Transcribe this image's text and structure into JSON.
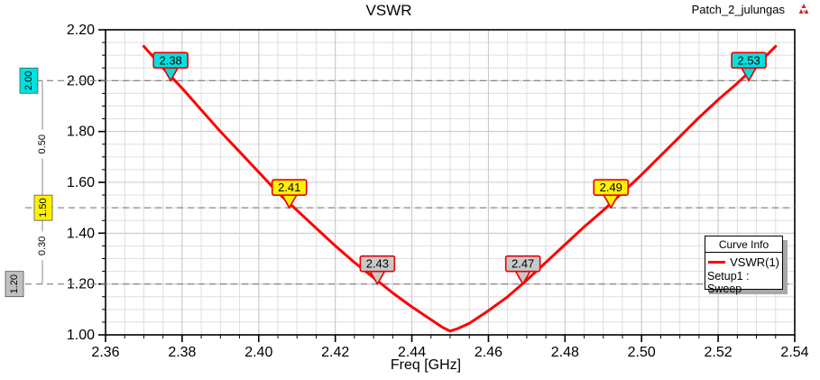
{
  "header": {
    "title": "VSWR",
    "project": "Patch_2_julungas",
    "logo_icon": "ansoft-logo"
  },
  "chart_data": {
    "type": "line",
    "title": "VSWR",
    "xlabel": "Freq [GHz]",
    "ylabel": "",
    "xlim": [
      2.36,
      2.54
    ],
    "ylim": [
      1.0,
      2.2
    ],
    "grid": true,
    "x_minor_step": 0.005,
    "y_minor_step": 0.05,
    "x_ticks": [
      {
        "label": "2.36",
        "value": 2.36
      },
      {
        "label": "2.38",
        "value": 2.38
      },
      {
        "label": "2.40",
        "value": 2.4
      },
      {
        "label": "2.42",
        "value": 2.42
      },
      {
        "label": "2.44",
        "value": 2.44
      },
      {
        "label": "2.46",
        "value": 2.46
      },
      {
        "label": "2.48",
        "value": 2.48
      },
      {
        "label": "2.50",
        "value": 2.5
      },
      {
        "label": "2.52",
        "value": 2.52
      },
      {
        "label": "2.54",
        "value": 2.54
      }
    ],
    "y_ticks": [
      {
        "label": "2.20",
        "value": 2.2
      },
      {
        "label": "2.00",
        "value": 2.0
      },
      {
        "label": "1.80",
        "value": 1.8
      },
      {
        "label": "1.60",
        "value": 1.6
      },
      {
        "label": "1.40",
        "value": 1.4
      },
      {
        "label": "1.20",
        "value": 1.2
      },
      {
        "label": "1.00",
        "value": 1.0
      }
    ],
    "series": [
      {
        "name": "VSWR(1)",
        "color": "#ff0000",
        "points": [
          [
            2.37,
            2.135
          ],
          [
            2.375,
            2.05
          ],
          [
            2.38,
            1.97
          ],
          [
            2.385,
            1.885
          ],
          [
            2.39,
            1.8
          ],
          [
            2.395,
            1.72
          ],
          [
            2.4,
            1.64
          ],
          [
            2.405,
            1.56
          ],
          [
            2.41,
            1.49
          ],
          [
            2.415,
            1.42
          ],
          [
            2.42,
            1.35
          ],
          [
            2.425,
            1.285
          ],
          [
            2.43,
            1.225
          ],
          [
            2.435,
            1.165
          ],
          [
            2.44,
            1.11
          ],
          [
            2.445,
            1.06
          ],
          [
            2.448,
            1.03
          ],
          [
            2.45,
            1.015
          ],
          [
            2.452,
            1.025
          ],
          [
            2.455,
            1.045
          ],
          [
            2.46,
            1.095
          ],
          [
            2.465,
            1.15
          ],
          [
            2.47,
            1.215
          ],
          [
            2.475,
            1.285
          ],
          [
            2.48,
            1.355
          ],
          [
            2.485,
            1.425
          ],
          [
            2.49,
            1.49
          ],
          [
            2.495,
            1.56
          ],
          [
            2.5,
            1.63
          ],
          [
            2.505,
            1.705
          ],
          [
            2.51,
            1.78
          ],
          [
            2.515,
            1.855
          ],
          [
            2.52,
            1.925
          ],
          [
            2.525,
            1.99
          ],
          [
            2.53,
            2.06
          ],
          [
            2.535,
            2.135
          ]
        ]
      }
    ],
    "ref_lines": [
      {
        "label": "2.00",
        "value": 2.0,
        "fill": "#00e1e1"
      },
      {
        "label": "1.50",
        "value": 1.5,
        "fill": "#fff200"
      },
      {
        "label": "1.20",
        "value": 1.2,
        "fill": "#c0c0c0"
      }
    ],
    "ruler_deltas": [
      {
        "label": "0.50",
        "from": 2.0,
        "to": 1.5
      },
      {
        "label": "0.30",
        "from": 1.5,
        "to": 1.2
      }
    ],
    "markers": [
      {
        "label": "2.38",
        "freq": 2.377,
        "value": 2.0,
        "fill": "#00e1e1"
      },
      {
        "label": "2.41",
        "freq": 2.408,
        "value": 1.5,
        "fill": "#fff200"
      },
      {
        "label": "2.43",
        "freq": 2.431,
        "value": 1.2,
        "fill": "#c8c8c8"
      },
      {
        "label": "2.47",
        "freq": 2.469,
        "value": 1.2,
        "fill": "#c8c8c8"
      },
      {
        "label": "2.49",
        "freq": 2.492,
        "value": 1.5,
        "fill": "#fff200"
      },
      {
        "label": "2.53",
        "freq": 2.528,
        "value": 2.0,
        "fill": "#00e1e1"
      }
    ],
    "legend": {
      "title": "Curve Info",
      "entries": [
        {
          "label": "VSWR(1)",
          "color": "#ff0000"
        }
      ],
      "footer": "Setup1 : Sweep",
      "position": "right-bottom"
    }
  },
  "colors": {
    "curve": "#ff0000",
    "grid_minor": "#dedede",
    "grid_major": "#c9c9c9",
    "ref_dash": "#7f7f7f",
    "marker_border": "#e80000",
    "axis": "#000000"
  }
}
